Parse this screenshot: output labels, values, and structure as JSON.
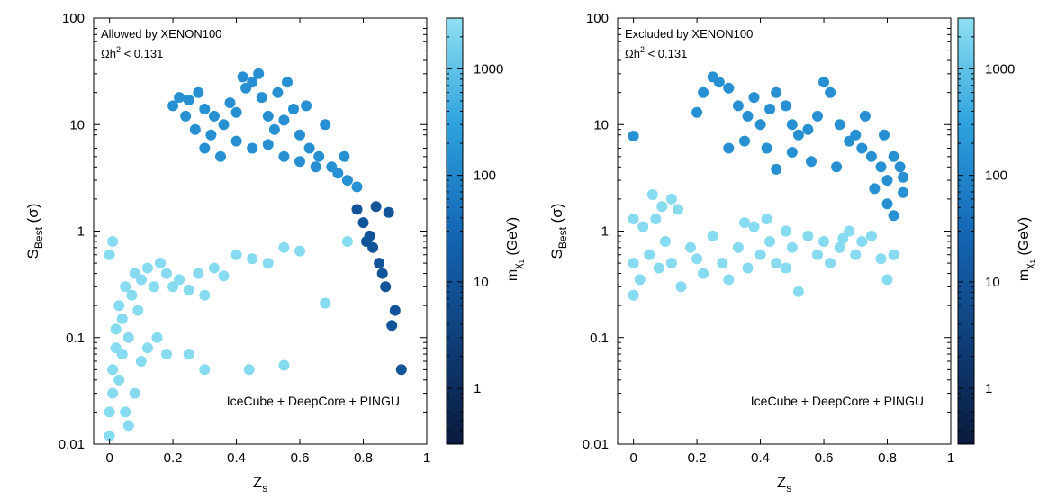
{
  "chart_data": [
    {
      "type": "scatter",
      "annotation_line1": "Allowed by XENON100",
      "omega_symbol": "Ωh",
      "omega_exp": "2",
      "omega_rest": " < 0.131",
      "experiment_label": "IceCube + DeepCore + PINGU",
      "xlabel_main": "Z",
      "xlabel_sub": "s",
      "ylabel_main": "S",
      "ylabel_sub": "Best",
      "ylabel_unit": " (σ)",
      "colorbar_label_main": "m",
      "colorbar_label_sub": "χ",
      "colorbar_label_subsub": "1",
      "colorbar_label_unit": " (GeV)",
      "xlim": [
        -0.05,
        1.0
      ],
      "ylim": [
        0.01,
        100
      ],
      "yscale": "log",
      "colorbar_range_gev": [
        0.3,
        3000
      ],
      "colorbar_scale": "log",
      "xticks": [
        "0",
        "0.2",
        "0.4",
        "0.6",
        "0.8",
        "1"
      ],
      "yticks": [
        "0.01",
        "0.1",
        "1",
        "10",
        "100"
      ],
      "colorbar_ticks": [
        "1",
        "10",
        "100",
        "1000"
      ],
      "clusters": [
        {
          "desc": "high-mass band",
          "mass_gev": 150,
          "points": [
            [
              0.2,
              15
            ],
            [
              0.22,
              18
            ],
            [
              0.25,
              17
            ],
            [
              0.28,
              20
            ],
            [
              0.3,
              14
            ],
            [
              0.33,
              12
            ],
            [
              0.36,
              10
            ],
            [
              0.4,
              13
            ],
            [
              0.43,
              22
            ],
            [
              0.45,
              25
            ],
            [
              0.48,
              18
            ],
            [
              0.5,
              12
            ],
            [
              0.52,
              9
            ],
            [
              0.55,
              11
            ],
            [
              0.58,
              14
            ],
            [
              0.6,
              8
            ],
            [
              0.63,
              6
            ],
            [
              0.66,
              5
            ],
            [
              0.7,
              4
            ],
            [
              0.72,
              3.5
            ],
            [
              0.75,
              3
            ],
            [
              0.78,
              2.6
            ],
            [
              0.3,
              6
            ],
            [
              0.35,
              5
            ],
            [
              0.4,
              7
            ],
            [
              0.45,
              6
            ],
            [
              0.5,
              6.5
            ],
            [
              0.55,
              5
            ],
            [
              0.6,
              4.5
            ],
            [
              0.65,
              4
            ],
            [
              0.38,
              16
            ],
            [
              0.42,
              28
            ],
            [
              0.47,
              30
            ],
            [
              0.53,
              20
            ],
            [
              0.24,
              12
            ],
            [
              0.27,
              9
            ],
            [
              0.32,
              8
            ],
            [
              0.56,
              25
            ],
            [
              0.62,
              15
            ],
            [
              0.68,
              10
            ],
            [
              0.74,
              5
            ]
          ]
        },
        {
          "desc": "low-mass tail",
          "mass_gev": 10,
          "points": [
            [
              0.78,
              1.6
            ],
            [
              0.8,
              1.2
            ],
            [
              0.82,
              0.9
            ],
            [
              0.83,
              0.7
            ],
            [
              0.85,
              0.5
            ],
            [
              0.86,
              0.4
            ],
            [
              0.87,
              0.3
            ],
            [
              0.88,
              1.5
            ],
            [
              0.84,
              1.7
            ],
            [
              0.81,
              0.8
            ],
            [
              0.9,
              0.18
            ],
            [
              0.89,
              0.13
            ],
            [
              0.92,
              0.05
            ]
          ]
        },
        {
          "desc": "very-high-mass band",
          "mass_gev": 2500,
          "points": [
            [
              0.0,
              0.012
            ],
            [
              0.0,
              0.02
            ],
            [
              0.01,
              0.03
            ],
            [
              0.01,
              0.05
            ],
            [
              0.02,
              0.08
            ],
            [
              0.02,
              0.12
            ],
            [
              0.03,
              0.2
            ],
            [
              0.04,
              0.15
            ],
            [
              0.05,
              0.3
            ],
            [
              0.06,
              0.1
            ],
            [
              0.07,
              0.25
            ],
            [
              0.08,
              0.4
            ],
            [
              0.09,
              0.18
            ],
            [
              0.1,
              0.35
            ],
            [
              0.12,
              0.45
            ],
            [
              0.14,
              0.3
            ],
            [
              0.16,
              0.5
            ],
            [
              0.18,
              0.4
            ],
            [
              0.2,
              0.3
            ],
            [
              0.22,
              0.35
            ],
            [
              0.25,
              0.28
            ],
            [
              0.28,
              0.4
            ],
            [
              0.3,
              0.25
            ],
            [
              0.33,
              0.45
            ],
            [
              0.36,
              0.38
            ],
            [
              0.4,
              0.6
            ],
            [
              0.45,
              0.55
            ],
            [
              0.5,
              0.5
            ],
            [
              0.55,
              0.7
            ],
            [
              0.6,
              0.65
            ],
            [
              0.15,
              0.1
            ],
            [
              0.18,
              0.07
            ],
            [
              0.25,
              0.07
            ],
            [
              0.3,
              0.05
            ],
            [
              0.44,
              0.05
            ],
            [
              0.55,
              0.055
            ],
            [
              0.68,
              0.21
            ],
            [
              0.75,
              0.8
            ],
            [
              0.0,
              0.6
            ],
            [
              0.01,
              0.8
            ],
            [
              0.03,
              0.04
            ],
            [
              0.05,
              0.02
            ],
            [
              0.08,
              0.03
            ],
            [
              0.1,
              0.06
            ],
            [
              0.12,
              0.08
            ],
            [
              0.06,
              0.015
            ],
            [
              0.04,
              0.07
            ]
          ]
        }
      ]
    },
    {
      "type": "scatter",
      "annotation_line1": "Excluded by XENON100",
      "omega_symbol": "Ωh",
      "omega_exp": "2",
      "omega_rest": " < 0.131",
      "experiment_label": "IceCube + DeepCore + PINGU",
      "xlabel_main": "Z",
      "xlabel_sub": "s",
      "ylabel_main": "S",
      "ylabel_sub": "Best",
      "ylabel_unit": " (σ)",
      "colorbar_label_main": "m",
      "colorbar_label_sub": "χ",
      "colorbar_label_subsub": "1",
      "colorbar_label_unit": " (GeV)",
      "xlim": [
        -0.05,
        1.0
      ],
      "ylim": [
        0.01,
        100
      ],
      "yscale": "log",
      "colorbar_range_gev": [
        0.3,
        3000
      ],
      "colorbar_scale": "log",
      "xticks": [
        "0",
        "0.2",
        "0.4",
        "0.6",
        "0.8",
        "1"
      ],
      "yticks": [
        "0.01",
        "0.1",
        "1",
        "10",
        "100"
      ],
      "colorbar_ticks": [
        "1",
        "10",
        "100",
        "1000"
      ],
      "clusters": [
        {
          "desc": "high-mass band",
          "mass_gev": 150,
          "points": [
            [
              0.2,
              13
            ],
            [
              0.22,
              20
            ],
            [
              0.25,
              28
            ],
            [
              0.27,
              25
            ],
            [
              0.3,
              22
            ],
            [
              0.33,
              15
            ],
            [
              0.36,
              12
            ],
            [
              0.38,
              18
            ],
            [
              0.4,
              10
            ],
            [
              0.43,
              14
            ],
            [
              0.45,
              20
            ],
            [
              0.48,
              15
            ],
            [
              0.5,
              10
            ],
            [
              0.52,
              8
            ],
            [
              0.55,
              9
            ],
            [
              0.58,
              12
            ],
            [
              0.6,
              25
            ],
            [
              0.62,
              20
            ],
            [
              0.65,
              10
            ],
            [
              0.68,
              7
            ],
            [
              0.7,
              8
            ],
            [
              0.72,
              6
            ],
            [
              0.75,
              5
            ],
            [
              0.78,
              4
            ],
            [
              0.8,
              3
            ],
            [
              0.82,
              5
            ],
            [
              0.84,
              4
            ],
            [
              0.85,
              3.2
            ],
            [
              0.3,
              6
            ],
            [
              0.35,
              7
            ],
            [
              0.42,
              6
            ],
            [
              0.5,
              5.5
            ],
            [
              0.56,
              4.5
            ],
            [
              0.64,
              4
            ],
            [
              0.76,
              2.5
            ],
            [
              0.8,
              1.8
            ],
            [
              0.82,
              1.4
            ],
            [
              0.85,
              2.3
            ],
            [
              0.0,
              7.8
            ],
            [
              0.45,
              3.8
            ],
            [
              0.73,
              12
            ],
            [
              0.79,
              8
            ]
          ]
        },
        {
          "desc": "very-high-mass band",
          "mass_gev": 2500,
          "points": [
            [
              0.0,
              0.25
            ],
            [
              0.0,
              0.5
            ],
            [
              0.02,
              0.35
            ],
            [
              0.05,
              0.6
            ],
            [
              0.08,
              0.45
            ],
            [
              0.1,
              0.8
            ],
            [
              0.12,
              0.5
            ],
            [
              0.15,
              0.3
            ],
            [
              0.18,
              0.7
            ],
            [
              0.2,
              0.55
            ],
            [
              0.22,
              0.4
            ],
            [
              0.25,
              0.9
            ],
            [
              0.28,
              0.5
            ],
            [
              0.3,
              0.35
            ],
            [
              0.33,
              0.7
            ],
            [
              0.36,
              0.45
            ],
            [
              0.38,
              1.1
            ],
            [
              0.4,
              0.6
            ],
            [
              0.43,
              0.8
            ],
            [
              0.45,
              0.5
            ],
            [
              0.48,
              1.0
            ],
            [
              0.5,
              0.7
            ],
            [
              0.52,
              0.27
            ],
            [
              0.55,
              0.9
            ],
            [
              0.58,
              0.6
            ],
            [
              0.6,
              0.8
            ],
            [
              0.62,
              0.5
            ],
            [
              0.65,
              0.7
            ],
            [
              0.68,
              1.0
            ],
            [
              0.7,
              0.6
            ],
            [
              0.72,
              0.8
            ],
            [
              0.75,
              0.9
            ],
            [
              0.78,
              0.55
            ],
            [
              0.8,
              0.35
            ],
            [
              0.82,
              0.6
            ],
            [
              0.0,
              1.3
            ],
            [
              0.03,
              1.1
            ],
            [
              0.06,
              2.2
            ],
            [
              0.07,
              1.3
            ],
            [
              0.09,
              1.7
            ],
            [
              0.12,
              2.0
            ],
            [
              0.14,
              1.6
            ],
            [
              0.35,
              1.2
            ],
            [
              0.42,
              1.3
            ],
            [
              0.48,
              0.45
            ],
            [
              0.66,
              0.85
            ]
          ]
        }
      ]
    }
  ]
}
